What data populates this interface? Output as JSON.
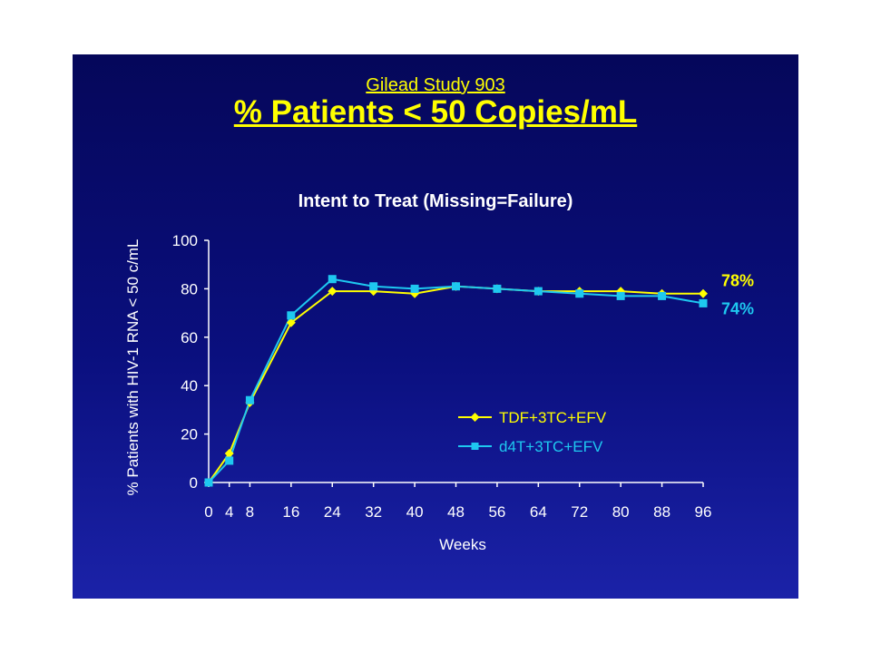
{
  "slide": {
    "subtitle": "Gilead Study 903",
    "title": "% Patients < 50 Copies/mL",
    "background_top": "#05075a",
    "background_bottom": "#1b22a8"
  },
  "chart_data": {
    "type": "line",
    "title": "Intent to Treat (Missing=Failure)",
    "xlabel": "Weeks",
    "ylabel": "% Patients with HIV-1 RNA < 50 c/mL",
    "x_ticks": [
      0,
      4,
      8,
      16,
      24,
      32,
      40,
      48,
      56,
      64,
      72,
      80,
      88,
      96
    ],
    "y_ticks": [
      0,
      20,
      40,
      60,
      80,
      100
    ],
    "xlim": [
      0,
      96
    ],
    "ylim": [
      0,
      100
    ],
    "grid": false,
    "legend_position": "lower-right",
    "series": [
      {
        "name": "TDF+3TC+EFV",
        "color": "#ffff00",
        "marker": "diamond",
        "end_label": "78%",
        "x": [
          0,
          4,
          8,
          16,
          24,
          32,
          40,
          48,
          56,
          64,
          72,
          80,
          88,
          96
        ],
        "y": [
          0,
          12,
          33,
          66,
          79,
          79,
          78,
          81,
          80,
          79,
          79,
          79,
          78,
          78
        ]
      },
      {
        "name": "d4T+3TC+EFV",
        "color": "#1ec8f0",
        "marker": "square",
        "end_label": "74%",
        "x": [
          0,
          4,
          8,
          16,
          24,
          32,
          40,
          48,
          56,
          64,
          72,
          80,
          88,
          96
        ],
        "y": [
          0,
          9,
          34,
          69,
          84,
          81,
          80,
          81,
          80,
          79,
          78,
          77,
          77,
          74
        ]
      }
    ]
  }
}
